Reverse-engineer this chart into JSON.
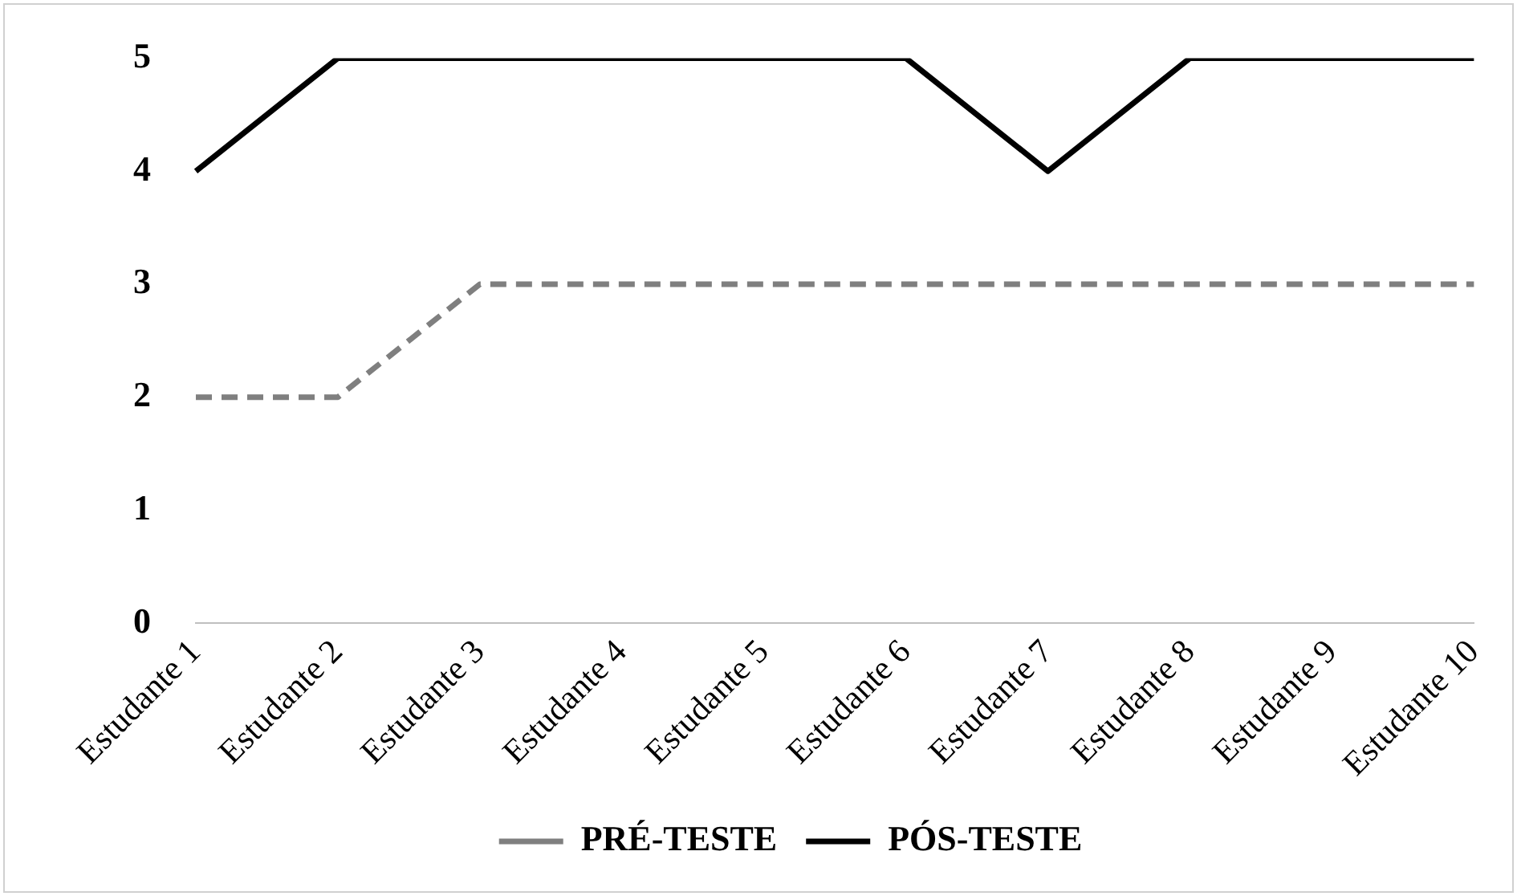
{
  "chart_data": {
    "type": "line",
    "categories": [
      "Estudante 1",
      "Estudante 2",
      "Estudante 3",
      "Estudante 4",
      "Estudante 5",
      "Estudante 6",
      "Estudante 7",
      "Estudante 8",
      "Estudante 9",
      "Estudante 10"
    ],
    "series": [
      {
        "name": "PRÉ-TESTE",
        "color": "#7f7f7f",
        "line_style": "dashed",
        "values": [
          2,
          2,
          3,
          3,
          3,
          3,
          3,
          3,
          3,
          3
        ]
      },
      {
        "name": "PÓS-TESTE",
        "color": "#000000",
        "line_style": "solid",
        "values": [
          4,
          5,
          5,
          5,
          5,
          5,
          4,
          5,
          5,
          5
        ]
      }
    ],
    "ylim": [
      0,
      5
    ],
    "yticks": [
      0,
      1,
      2,
      3,
      4,
      5
    ],
    "grid": false,
    "legend": "bottom"
  }
}
